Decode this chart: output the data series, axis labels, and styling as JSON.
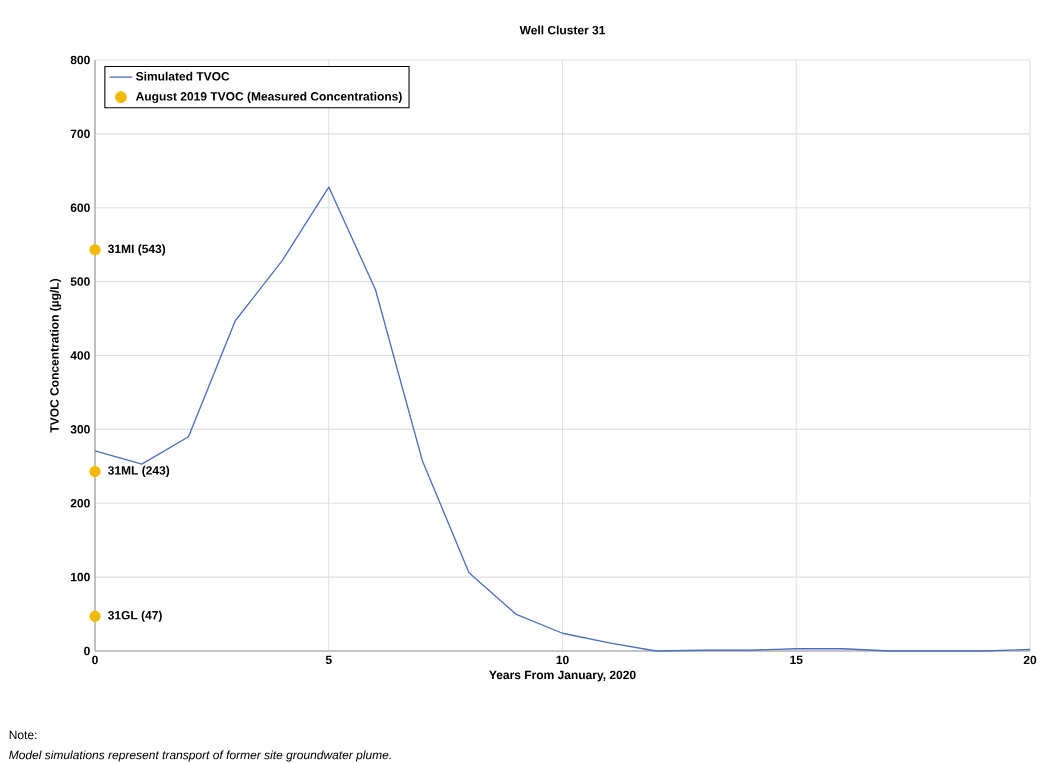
{
  "chart_data": {
    "type": "line",
    "title": "Well Cluster 31",
    "xlabel": "Years From January, 2020",
    "ylabel": "TVOC Concentration  (µg/L)",
    "xlim": [
      0,
      20
    ],
    "ylim": [
      0,
      800
    ],
    "xticks": [
      0,
      5,
      10,
      15,
      20
    ],
    "yticks": [
      0,
      100,
      200,
      300,
      400,
      500,
      600,
      700,
      800
    ],
    "grid": true,
    "legend": "top left",
    "marker": "none",
    "line_style": "solid",
    "series": [
      {
        "name": "Simulated TVOC",
        "color": "#4a6fc0",
        "x": [
          0,
          1,
          2,
          3,
          4,
          5,
          6,
          7,
          8,
          9,
          10,
          11,
          12,
          13,
          14,
          15,
          16,
          17,
          18,
          19,
          20
        ],
        "values": [
          271,
          253,
          290,
          447,
          528,
          628,
          489,
          258,
          106,
          50,
          24,
          11,
          0,
          1,
          1,
          3,
          3,
          0,
          0,
          0,
          2
        ]
      },
      {
        "name": "August 2019 TVOC (Measured Concentrations)",
        "type": "scatter",
        "marker": "circle",
        "color": "#f2b900",
        "x": [
          0,
          0,
          0
        ],
        "values": [
          543,
          243,
          47
        ],
        "value_labels": [
          "31MI (543)",
          "31ML (243)",
          "31GL (47)"
        ]
      }
    ],
    "annotations": [
      "Note:",
      "Model simulations represent transport of former site groundwater plume."
    ]
  }
}
